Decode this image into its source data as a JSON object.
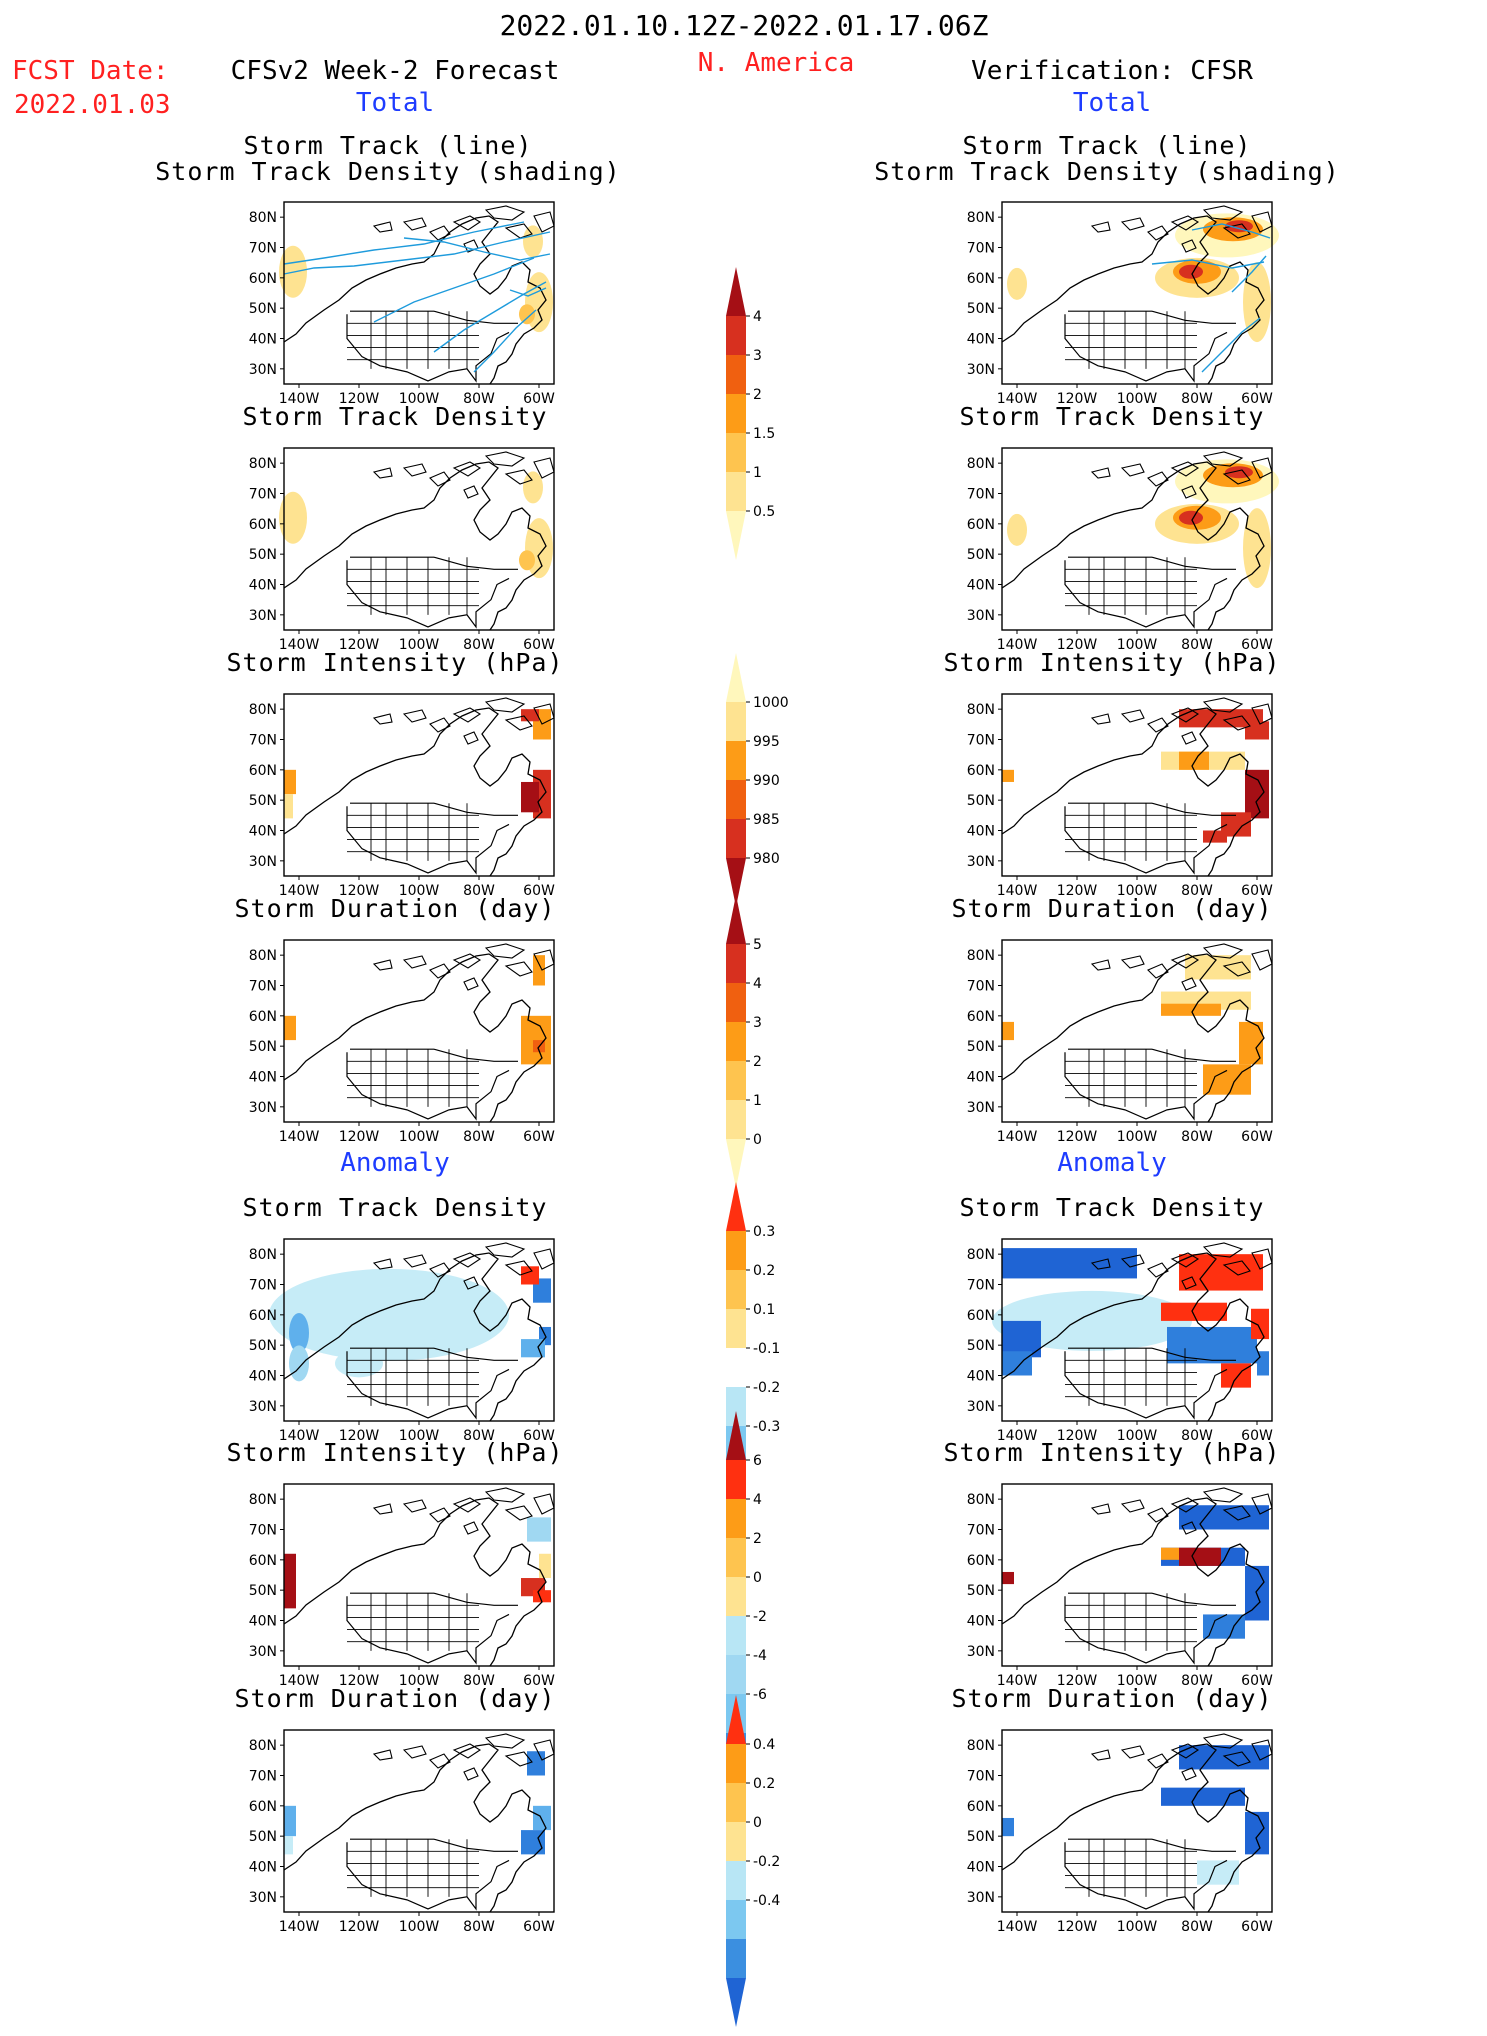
{
  "header": {
    "date_range": "2022.01.10.12Z-2022.01.17.06Z",
    "region": "N. America",
    "fcst_label": "FCST Date:",
    "fcst_date": "2022.01.03",
    "left_title": "CFSv2 Week-2 Forecast",
    "right_title": "Verification: CFSR",
    "total_label": "Total",
    "anomaly_label": "Anomaly"
  },
  "panel_titles": {
    "track_line": "Storm Track (line)",
    "track_shading": "Storm Track Density (shading)",
    "density": "Storm Track Density",
    "intensity": "Storm Intensity (hPa)",
    "duration": "Storm Duration (day)"
  },
  "axes": {
    "lat_ticks": [
      "80N",
      "70N",
      "60N",
      "50N",
      "40N",
      "30N"
    ],
    "lon_ticks": [
      "140W",
      "120W",
      "100W",
      "80W",
      "60W"
    ]
  },
  "colorbars": [
    {
      "name": "density-total",
      "labels": [
        "4",
        "3",
        "2",
        "1.5",
        "1",
        "0.5"
      ],
      "colors": [
        "#a50f15",
        "#d7301f",
        "#f06010",
        "#fd9c17",
        "#fec44f",
        "#fee391",
        "#fff7bc"
      ]
    },
    {
      "name": "intensity-total",
      "labels": [
        "1000",
        "995",
        "990",
        "985",
        "980"
      ],
      "colors": [
        "#fff7bc",
        "#fee391",
        "#fd9c17",
        "#f06010",
        "#d7301f",
        "#a50f15"
      ]
    },
    {
      "name": "duration-total",
      "labels": [
        "5",
        "4",
        "3",
        "2",
        "1",
        "0"
      ],
      "colors": [
        "#a50f15",
        "#d7301f",
        "#f06010",
        "#fd9c17",
        "#fec44f",
        "#fee391",
        "#fff7bc"
      ]
    },
    {
      "name": "density-anomaly",
      "labels": [
        "0.3",
        "0.2",
        "0.1",
        "-0.1",
        "-0.2",
        "-0.3"
      ],
      "colors": [
        "#ff3010",
        "#fd9c17",
        "#fec44f",
        "#fee391",
        "#ffffff",
        "#b8e6f5",
        "#7cc8f0",
        "#3b8fe0",
        "#1f64d4"
      ]
    },
    {
      "name": "intensity-anomaly",
      "labels": [
        "6",
        "4",
        "2",
        "0",
        "-2",
        "-4",
        "-6"
      ],
      "colors": [
        "#a50f15",
        "#ff3010",
        "#fd9c17",
        "#fec44f",
        "#fee391",
        "#b8e6f5",
        "#a0d8f2",
        "#7cc8f0",
        "#3b8fe0",
        "#1f64d4"
      ]
    },
    {
      "name": "duration-anomaly",
      "labels": [
        "0.4",
        "0.2",
        "0",
        "-0.2",
        "-0.4"
      ],
      "colors": [
        "#ff3010",
        "#fd9c17",
        "#fec44f",
        "#fee391",
        "#b8e6f5",
        "#7cc8f0",
        "#3b8fe0",
        "#1f64d4"
      ]
    }
  ]
}
